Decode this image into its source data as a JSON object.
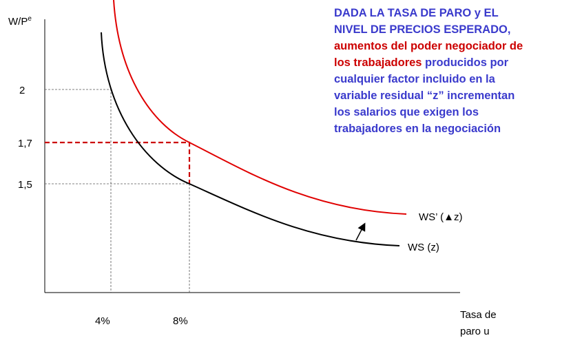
{
  "y_axis": {
    "label": "W/P",
    "label_sup": "e",
    "ticks": [
      "2",
      "1,7",
      "1,5"
    ]
  },
  "x_axis": {
    "label_lines": [
      "Tasa de",
      "paro u"
    ],
    "ticks": [
      "4%",
      "8%"
    ]
  },
  "curves": [
    {
      "label": "WS (z)"
    },
    {
      "label": "WS’ (▲z)"
    }
  ],
  "annotation": {
    "lines": [
      "DADA LA TASA DE PARO y EL",
      "NIVEL DE PRECIOS ESPERADO,",
      "aumentos del poder negociador de",
      [
        "los trabajadores",
        " producidos por"
      ],
      "cualquier factor incluido en la",
      "variable residual “z” incrementan",
      "los salarios que exigen los",
      "trabajadores en la negociación"
    ]
  }
}
